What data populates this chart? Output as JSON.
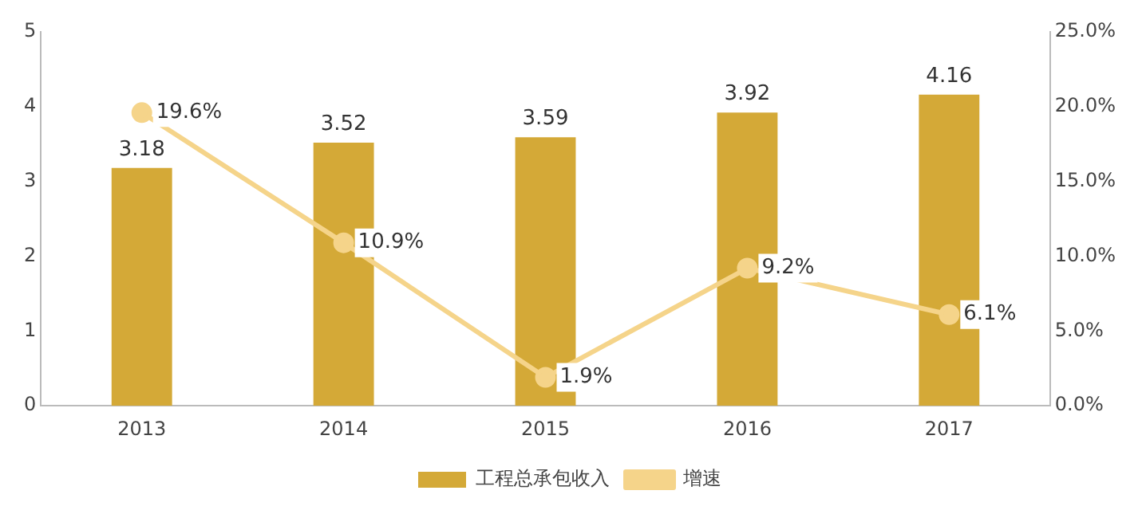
{
  "chart_data": {
    "type": "bar",
    "categories": [
      "2013",
      "2014",
      "2015",
      "2016",
      "2017"
    ],
    "series": [
      {
        "name": "工程总承包收入",
        "color": "#d4a937",
        "values": [
          3.18,
          3.52,
          3.59,
          3.92,
          4.16
        ],
        "value_labels": [
          "3.18",
          "3.52",
          "3.59",
          "3.92",
          "4.16"
        ]
      },
      {
        "name": "增速",
        "type": "line",
        "axis": "y2",
        "color": "#f5d48a",
        "marker": "circle",
        "values": [
          19.6,
          10.9,
          1.9,
          9.2,
          6.1
        ],
        "value_labels": [
          "19.6%",
          "10.9%",
          "1.9%",
          "9.2%",
          "6.1%"
        ]
      }
    ],
    "ylim": [
      0,
      5
    ],
    "yticks": [
      0,
      1,
      2,
      3,
      4,
      5
    ],
    "y2lim": [
      0,
      25
    ],
    "y2ticks": [
      {
        "value": 0,
        "label": "0.0%"
      },
      {
        "value": 5,
        "label": "5.0%"
      },
      {
        "value": 10,
        "label": "10.0%"
      },
      {
        "value": 15,
        "label": "15.0%"
      },
      {
        "value": 20,
        "label": "20.0%"
      },
      {
        "value": 25,
        "label": "25.0%"
      }
    ],
    "grid": false,
    "legend": "bottom"
  }
}
